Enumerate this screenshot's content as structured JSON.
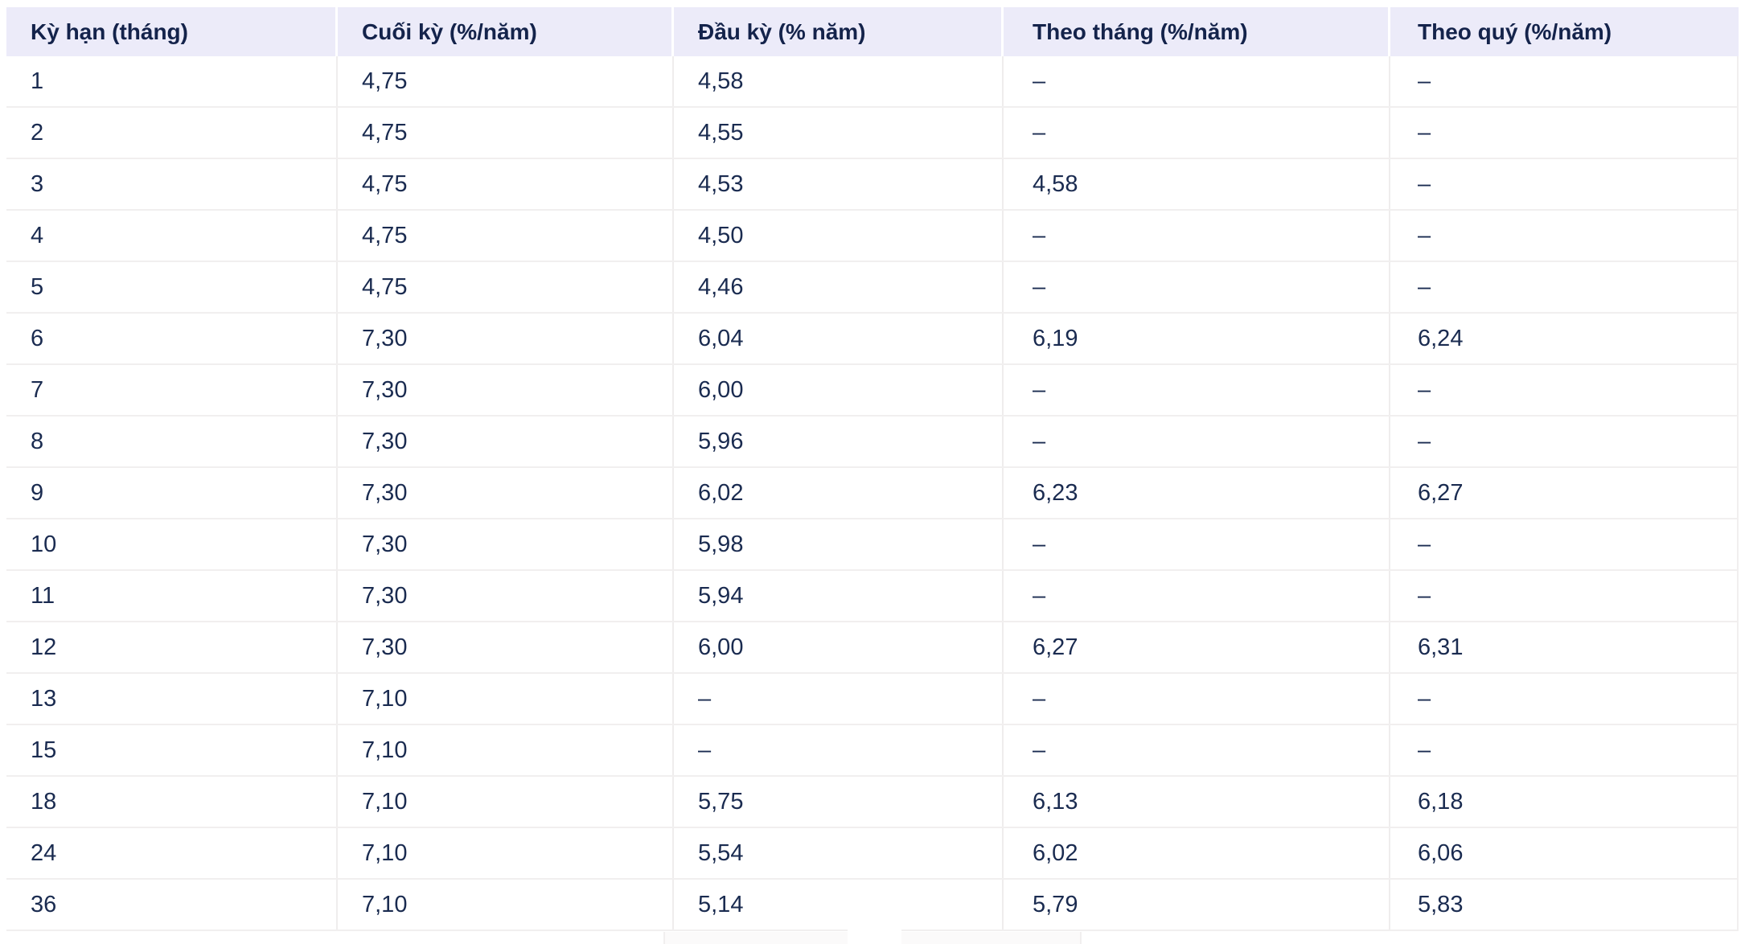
{
  "chart_data": {
    "type": "table",
    "title": "",
    "columns": [
      "Kỳ hạn (tháng)",
      "Cuối kỳ (%/năm)",
      "Đầu kỳ (% năm)",
      "Theo tháng (%/năm)",
      "Theo quý (%/năm)"
    ],
    "rows": [
      [
        "1",
        "4,75",
        "4,58",
        "–",
        "–"
      ],
      [
        "2",
        "4,75",
        "4,55",
        "–",
        "–"
      ],
      [
        "3",
        "4,75",
        "4,53",
        "4,58",
        "–"
      ],
      [
        "4",
        "4,75",
        "4,50",
        "–",
        "–"
      ],
      [
        "5",
        "4,75",
        "4,46",
        "–",
        "–"
      ],
      [
        "6",
        "7,30",
        "6,04",
        "6,19",
        "6,24"
      ],
      [
        "7",
        "7,30",
        "6,00",
        "–",
        "–"
      ],
      [
        "8",
        "7,30",
        "5,96",
        "–",
        "–"
      ],
      [
        "9",
        "7,30",
        "6,02",
        "6,23",
        "6,27"
      ],
      [
        "10",
        "7,30",
        "5,98",
        "–",
        "–"
      ],
      [
        "11",
        "7,30",
        "5,94",
        "–",
        "–"
      ],
      [
        "12",
        "7,30",
        "6,00",
        "6,27",
        "6,31"
      ],
      [
        "13",
        "7,10",
        "–",
        "–",
        "–"
      ],
      [
        "15",
        "7,10",
        "–",
        "–",
        "–"
      ],
      [
        "18",
        "7,10",
        "5,75",
        "6,13",
        "6,18"
      ],
      [
        "24",
        "7,10",
        "5,54",
        "6,02",
        "6,06"
      ],
      [
        "36",
        "7,10",
        "5,14",
        "5,79",
        "5,83"
      ]
    ],
    "empty_value_symbol": "–",
    "layout": {
      "grid": true,
      "header_position": "top"
    }
  },
  "colors": {
    "header_bg": "#ECEBF9",
    "header_text": "#14234B",
    "cell_text": "#1A2B50",
    "row_border": "#F1EFEF",
    "col_border": "#EFEDED",
    "page_bg": "#FFFFFF"
  }
}
